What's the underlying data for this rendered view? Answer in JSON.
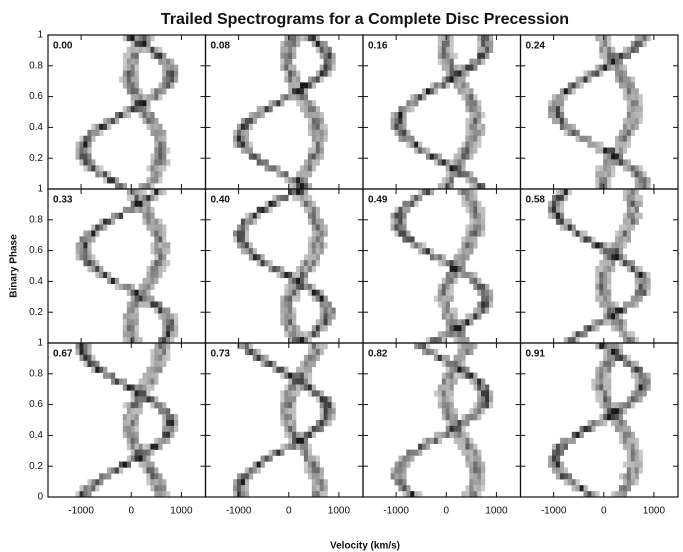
{
  "chart_data": {
    "type": "spectrogram-grid",
    "title": "Trailed Spectrograms for a Complete Disc Precession",
    "xlabel": "Velocity (km/s)",
    "ylabel": "Binary Phase",
    "xlim": [
      -1660,
      1480
    ],
    "xticks": [
      -1000,
      0,
      1000
    ],
    "ylim": [
      0,
      1
    ],
    "yticks": [
      0,
      0.2,
      0.4,
      0.6,
      0.8,
      1
    ],
    "panels": [
      {
        "label": "0.00"
      },
      {
        "label": "0.08"
      },
      {
        "label": "0.16"
      },
      {
        "label": "0.24"
      },
      {
        "label": "0.33"
      },
      {
        "label": "0.40"
      },
      {
        "label": "0.49"
      },
      {
        "label": "0.58"
      },
      {
        "label": "0.67"
      },
      {
        "label": "0.73"
      },
      {
        "label": "0.82"
      },
      {
        "label": "0.91"
      }
    ]
  }
}
